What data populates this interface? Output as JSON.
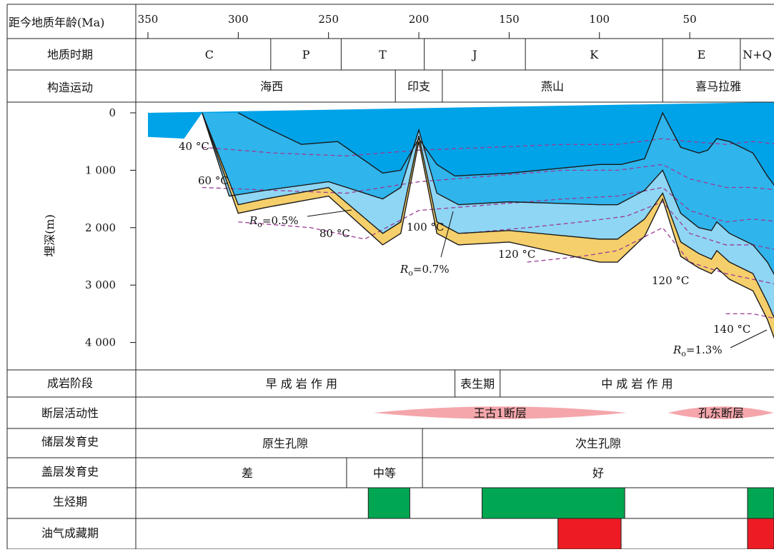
{
  "chart_data": {
    "type": "area",
    "title": "",
    "xlabel": "距今地质年龄(Ma)",
    "ylabel": "埋深(m)",
    "xlim": [
      350,
      0
    ],
    "ylim": [
      0,
      4500
    ],
    "x_ticks": [
      350,
      300,
      250,
      200,
      150,
      100,
      50,
      0
    ],
    "x_tick_labels": [
      "350",
      "300",
      "250",
      "200",
      "150",
      "100",
      "50",
      "0"
    ],
    "y_ticks": [
      0,
      1000,
      2000,
      3000,
      4000
    ],
    "y_tick_labels": [
      "0",
      "1 000",
      "2 000",
      "3 000",
      "4 000"
    ],
    "burial_curves": [
      {
        "x": [
          300,
          285,
          265,
          245,
          220,
          210,
          200,
          190,
          180,
          150,
          100,
          88,
          75,
          65,
          55,
          45,
          40,
          35,
          28,
          15,
          7,
          0
        ],
        "y": [
          0,
          250,
          550,
          500,
          1050,
          1000,
          450,
          900,
          1100,
          1050,
          900,
          900,
          800,
          0,
          600,
          700,
          650,
          450,
          500,
          700,
          1100,
          1400
        ]
      },
      {
        "x": [
          320,
          305,
          285,
          250,
          220,
          210,
          200,
          190,
          178,
          150,
          100,
          90,
          75,
          65,
          55,
          45,
          38,
          35,
          28,
          15,
          7,
          0
        ],
        "y": [
          0,
          1450,
          1350,
          1200,
          1500,
          1300,
          300,
          1400,
          1600,
          1550,
          1600,
          1600,
          1350,
          1000,
          1750,
          2000,
          2050,
          1900,
          2100,
          2300,
          2600,
          3000
        ]
      },
      {
        "x": [
          320,
          300,
          285,
          250,
          220,
          210,
          200,
          190,
          178,
          150,
          100,
          90,
          75,
          65,
          55,
          45,
          38,
          35,
          28,
          15,
          7,
          0
        ],
        "y": [
          0,
          1600,
          1500,
          1300,
          2100,
          1900,
          400,
          1900,
          2100,
          2050,
          2200,
          2200,
          1850,
          1400,
          2250,
          2450,
          2550,
          2400,
          2600,
          2800,
          3300,
          3800
        ]
      },
      {
        "x": [
          320,
          300,
          285,
          250,
          220,
          210,
          200,
          190,
          178,
          150,
          100,
          90,
          75,
          65,
          55,
          45,
          38,
          35,
          28,
          15,
          7,
          0
        ],
        "y": [
          0,
          1750,
          1650,
          1450,
          2300,
          2100,
          500,
          2100,
          2300,
          2250,
          2600,
          2600,
          2150,
          1500,
          2500,
          2700,
          2800,
          2700,
          2900,
          3100,
          3600,
          4200
        ]
      }
    ],
    "isotherms": [
      {
        "name": "40 °C",
        "x": [
          320,
          280,
          240,
          200,
          160,
          120,
          90,
          65,
          50,
          30,
          15,
          0
        ],
        "y": [
          600,
          700,
          750,
          650,
          600,
          550,
          550,
          450,
          500,
          550,
          500,
          550
        ]
      },
      {
        "name": "60 °C",
        "x": [
          320,
          280,
          240,
          200,
          160,
          120,
          90,
          65,
          50,
          30,
          15,
          0
        ],
        "y": [
          1300,
          1350,
          1400,
          1200,
          1100,
          1000,
          1000,
          900,
          1150,
          1300,
          1300,
          1350
        ]
      },
      {
        "name": "80 °C",
        "x": [
          300,
          260,
          230,
          200,
          160,
          120,
          90,
          65,
          50,
          30,
          15,
          0
        ],
        "y": [
          1900,
          2000,
          2200,
          1700,
          1600,
          1500,
          1450,
          1300,
          1700,
          1900,
          1850,
          1900
        ]
      },
      {
        "name": "100 °C",
        "x": [
          175,
          140,
          110,
          85,
          65,
          50,
          30,
          15,
          0
        ],
        "y": [
          2100,
          2000,
          1900,
          1800,
          1550,
          2100,
          2300,
          2300,
          2400
        ]
      },
      {
        "name": "120 °C",
        "x": [
          140,
          110,
          90,
          65,
          50,
          30,
          15,
          0
        ],
        "y": [
          2600,
          2500,
          2400,
          2000,
          2600,
          2800,
          2900,
          3000
        ]
      },
      {
        "name": "140 °C",
        "x": [
          30,
          15,
          0
        ],
        "y": [
          3500,
          3500,
          3600
        ]
      }
    ],
    "temperature_labels": [
      "40 °C",
      "60 °C",
      "80 °C",
      "100 °C",
      "120 °C",
      "120 °C",
      "140 °C"
    ],
    "ro_labels": {
      "ro_05": {
        "symbol": "R",
        "sub": "o",
        "value": "=0.5%"
      },
      "ro_07": {
        "symbol": "R",
        "sub": "o",
        "value": "=0.7%"
      },
      "ro_13": {
        "symbol": "R",
        "sub": "o",
        "value": "=1.3%"
      }
    },
    "maturity_zone_colors": [
      "#00a3e8",
      "#2fb4ec",
      "#5ec5f0",
      "#8ed6f4",
      "#c9e3a5",
      "#f5cf6b",
      "#f0a63c",
      "#eb7d1f"
    ]
  },
  "rows": {
    "age_label": "距今地质年龄(Ma)",
    "period_label": "地质时期",
    "tectonic_label": "构造运动",
    "depth_label": "埋深(m)",
    "diagenesis_label": "成岩阶段",
    "fault_label": "断层活动性",
    "reservoir_label": "储层发育史",
    "seal_label": "盖层发育史",
    "generation_label": "生烃期",
    "accumulation_label": "油气成藏期"
  },
  "periods": [
    {
      "label": "C",
      "from": 350,
      "to": 282
    },
    {
      "label": "P",
      "from": 282,
      "to": 243
    },
    {
      "label": "T",
      "from": 243,
      "to": 197
    },
    {
      "label": "J",
      "from": 197,
      "to": 141
    },
    {
      "label": "K",
      "from": 141,
      "to": 65
    },
    {
      "label": "E",
      "from": 65,
      "to": 22
    },
    {
      "label": "N+Q",
      "from": 22,
      "to": 0
    }
  ],
  "tectonics": [
    {
      "label": "海西",
      "from": 350,
      "to": 213
    },
    {
      "label": "印支",
      "from": 213,
      "to": 187
    },
    {
      "label": "燕山",
      "from": 187,
      "to": 65
    },
    {
      "label": "喜马拉雅",
      "from": 65,
      "to": 0
    }
  ],
  "diagenesis": [
    {
      "label": "早 成 岩 作 用",
      "from": 350,
      "to": 180
    },
    {
      "label": "表生期",
      "from": 180,
      "to": 155
    },
    {
      "label": "中 成 岩 作 用",
      "from": 155,
      "to": 0
    }
  ],
  "faults": [
    {
      "label": "王古1断层",
      "from": 225,
      "to": 85
    },
    {
      "label": "孔东断层",
      "from": 62,
      "to": 3
    }
  ],
  "reservoir": [
    {
      "label": "原生孔隙",
      "from": 350,
      "to": 198
    },
    {
      "label": "次生孔隙",
      "from": 198,
      "to": 0
    }
  ],
  "seal": [
    {
      "label": "差",
      "from": 350,
      "to": 240
    },
    {
      "label": "中等",
      "from": 240,
      "to": 198
    },
    {
      "label": "好",
      "from": 198,
      "to": 0
    }
  ],
  "generation": [
    {
      "from": 228,
      "to": 205
    },
    {
      "from": 165,
      "to": 86
    },
    {
      "from": 18,
      "to": 0
    }
  ],
  "accumulation": [
    {
      "from": 123,
      "to": 88
    },
    {
      "from": 18,
      "to": 0
    }
  ],
  "colors": {
    "generation": "#00a651",
    "accumulation": "#ed1c24",
    "fault": "#f4a6ab",
    "isotherm": "#9b3a97"
  }
}
